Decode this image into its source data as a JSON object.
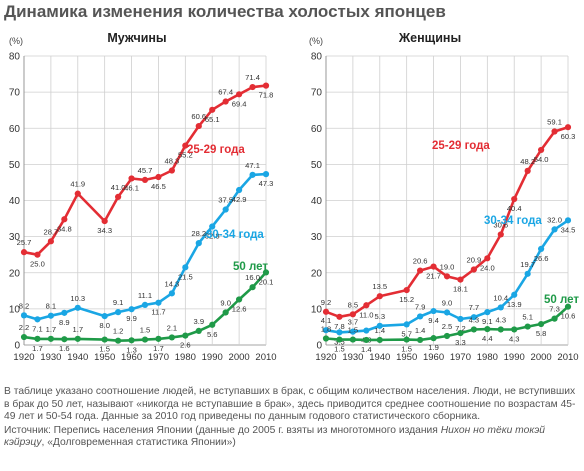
{
  "title": "Динамика изменения количества холостых японцев",
  "chart_data": [
    {
      "type": "line",
      "title": "Мужчины",
      "ylabel": "(%)",
      "ylim": [
        0,
        80
      ],
      "yticks": [
        0,
        10,
        20,
        30,
        40,
        50,
        60,
        70,
        80
      ],
      "xticks": [
        1920,
        1930,
        1940,
        1950,
        1960,
        1970,
        1980,
        1990,
        2000,
        2010
      ],
      "x": [
        1920,
        1925,
        1930,
        1935,
        1940,
        1950,
        1955,
        1960,
        1965,
        1970,
        1975,
        1980,
        1985,
        1990,
        1995,
        2000,
        2005,
        2010
      ],
      "grid": true,
      "series": [
        {
          "name": "25-29 года",
          "color": "#e32d34",
          "values": [
            25.7,
            25.0,
            28.7,
            34.8,
            41.9,
            34.3,
            41.0,
            46.1,
            45.7,
            46.5,
            48.3,
            55.2,
            60.6,
            65.1,
            67.4,
            69.4,
            71.4,
            71.8
          ],
          "labels": [
            "25.7",
            "25.0",
            "28.7",
            "34.8",
            "41.9",
            "34.3",
            "41.0",
            "46.1",
            "45.7",
            "46.5",
            "48.3",
            "55.2",
            "60.6",
            "65.1",
            "67.4",
            "69.4",
            "71.4",
            "71.8"
          ]
        },
        {
          "name": "30-34 года",
          "color": "#1aa6e4",
          "values": [
            8.2,
            7.1,
            8.1,
            8.9,
            10.3,
            8.0,
            9.1,
            9.9,
            11.1,
            11.7,
            14.3,
            21.5,
            28.2,
            32.8,
            37.5,
            42.9,
            47.1,
            47.3
          ],
          "labels": [
            "8.2",
            "7.1",
            "8.1",
            "8.9",
            "10.3",
            "8.0",
            "9.1",
            "9.9",
            "11.1",
            "11.7",
            "14.3",
            "21.5",
            "28.2",
            "32.8",
            "37.5",
            "42.9",
            "47.1",
            "47.3"
          ]
        },
        {
          "name": "50 лет",
          "color": "#1f9a48",
          "values": [
            2.2,
            1.7,
            1.7,
            1.6,
            1.7,
            1.5,
            1.2,
            1.3,
            1.5,
            1.7,
            2.1,
            2.6,
            3.9,
            5.6,
            9.0,
            12.6,
            16.0,
            20.1
          ],
          "labels": [
            "2.2",
            "1.7",
            "1.7",
            "1.6",
            "1.7",
            "1.5",
            "1.2",
            "1.3",
            "1.5",
            "1.7",
            "2.1",
            "2.6",
            "3.9",
            "5.6",
            "9.0",
            "12.6",
            "16.0",
            "20.1"
          ]
        }
      ]
    },
    {
      "type": "line",
      "title": "Женщины",
      "ylabel": "(%)",
      "ylim": [
        0,
        80
      ],
      "yticks": [
        0,
        10,
        20,
        30,
        40,
        50,
        60,
        70,
        80
      ],
      "xticks": [
        1920,
        1930,
        1940,
        1950,
        1960,
        1970,
        1980,
        1990,
        2000,
        2010
      ],
      "x": [
        1920,
        1925,
        1930,
        1935,
        1940,
        1950,
        1955,
        1960,
        1965,
        1970,
        1975,
        1980,
        1985,
        1990,
        1995,
        2000,
        2005,
        2010
      ],
      "grid": true,
      "series": [
        {
          "name": "25-29 года",
          "color": "#e32d34",
          "values": [
            9.2,
            7.8,
            8.5,
            11.0,
            13.5,
            15.2,
            20.6,
            21.7,
            19.0,
            18.1,
            20.9,
            24.0,
            30.6,
            40.4,
            48.2,
            54.0,
            59.1,
            60.3
          ],
          "labels": [
            "9.2",
            "7.8",
            "8.5",
            "11.0",
            "13.5",
            "15.2",
            "20.6",
            "21.7",
            "19.0",
            "18.1",
            "20.9",
            "24.0",
            "30.6",
            "40.4",
            "48.2",
            "54.0",
            "59.1",
            "60.3"
          ]
        },
        {
          "name": "30-34 года",
          "color": "#1aa6e4",
          "values": [
            4.1,
            3.5,
            3.7,
            4.0,
            5.3,
            5.7,
            7.9,
            9.4,
            9.0,
            7.2,
            7.7,
            9.1,
            10.4,
            13.9,
            19.7,
            26.6,
            32.0,
            34.5
          ],
          "labels": [
            "4.1",
            "3.5",
            "3.7",
            "4.0",
            "5.3",
            "5.7",
            "7.9",
            "9.4",
            "9.0",
            "7.2",
            "7.7",
            "9.1",
            "10.4",
            "13.9",
            "19.7",
            "26.6",
            "32.0",
            "34.5"
          ]
        },
        {
          "name": "50 лет",
          "color": "#1f9a48",
          "values": [
            1.8,
            1.5,
            1.5,
            1.4,
            1.4,
            1.5,
            1.4,
            1.9,
            2.5,
            3.3,
            4.3,
            4.4,
            4.3,
            4.3,
            5.1,
            5.8,
            7.3,
            10.6
          ],
          "labels": [
            "1.8",
            "1.5",
            "1.5",
            "1.4",
            "1.4",
            "1.5",
            "1.4",
            "1.9",
            "2.5",
            "3.3",
            "4.3",
            "4.4",
            "4.3",
            "4.3",
            "5.1",
            "5.8",
            "7.3",
            "10.6"
          ]
        }
      ]
    }
  ],
  "notes": {
    "description": "В таблице указано соотношение людей, не вступавших в брак, с общим количеством населения. Люди, не вступивших в брак до 50 лет, называют «никогда не вступавшие в брак», здесь приводится среднее соотношение по возрастам 45-49 лет и 50-54 года. Данные за 2010 год приведены по данным годового статистического сборника.",
    "source_prefix": "Источник: Перепись населения Японии (данные до 2005 г. взяты из многотомного издания ",
    "source_title": "Нихон но тёки токэй кэйрэцу",
    "source_suffix": ", «Долговременная статистика Японии»)"
  }
}
